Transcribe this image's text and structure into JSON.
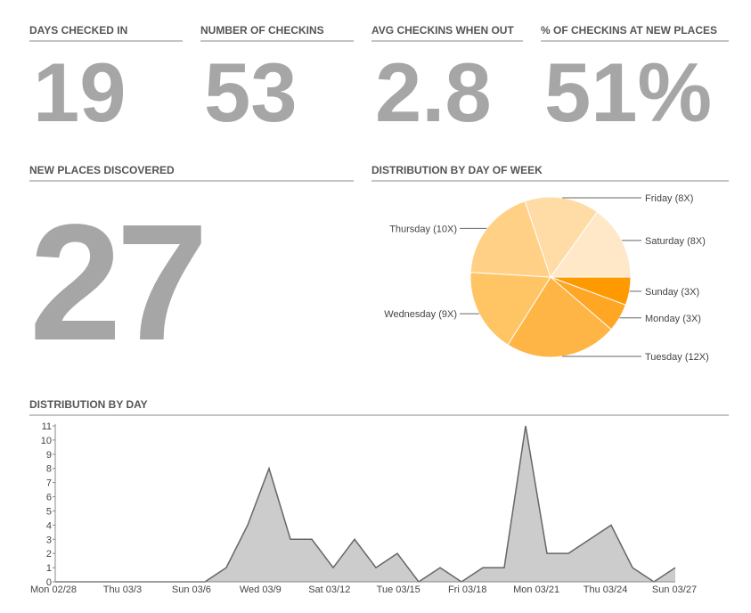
{
  "tiles": [
    {
      "title": "DAYS CHECKED IN",
      "value": "19"
    },
    {
      "title": "NUMBER OF CHECKINS",
      "value": "53"
    },
    {
      "title": "AVG CHECKINS WHEN OUT",
      "value": "2.8"
    },
    {
      "title": "% OF CHECKINS AT NEW PLACES",
      "value": "51%"
    }
  ],
  "new_places": {
    "title": "NEW PLACES DISCOVERED",
    "value": "27"
  },
  "chart_data": [
    {
      "type": "pie",
      "title": "DISTRIBUTION BY DAY OF WEEK",
      "values": [
        3,
        3,
        12,
        9,
        10,
        8,
        8
      ],
      "value_labels": [
        "Sunday (3X)",
        "Monday (3X)",
        "Tuesday (12X)",
        "Wednesday (9X)",
        "Thursday (10X)",
        "Friday (8X)",
        "Saturday (8X)"
      ],
      "colors": [
        "#ff9900",
        "#ffa624",
        "#ffb545",
        "#ffc464",
        "#ffd085",
        "#ffdca6",
        "#ffe8c8"
      ]
    },
    {
      "type": "area",
      "title": "DISTRIBUTION BY DAY",
      "x_labels": [
        "Mon 02/28",
        "Thu 03/3",
        "Sun 03/6",
        "Wed 03/9",
        "Sat 03/12",
        "Tue 03/15",
        "Fri 03/18",
        "Mon 03/21",
        "Thu 03/24",
        "Sun 03/27"
      ],
      "values": [
        0,
        0,
        0,
        0,
        0,
        0,
        0,
        0,
        1,
        4,
        8,
        3,
        3,
        1,
        3,
        1,
        2,
        0,
        1,
        0,
        1,
        1,
        11,
        2,
        2,
        3,
        4,
        1,
        0,
        1
      ],
      "ylim": [
        0,
        11
      ],
      "yticks": [
        0,
        1,
        2,
        3,
        4,
        5,
        6,
        7,
        8,
        9,
        10,
        11
      ],
      "color": "#cccccc",
      "line_color": "#666666"
    }
  ]
}
